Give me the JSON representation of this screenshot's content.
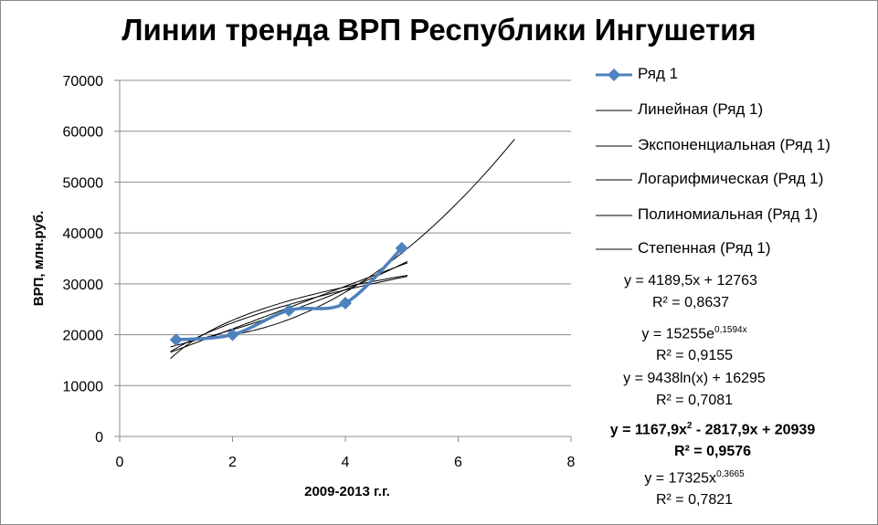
{
  "chart_data": {
    "type": "scatter",
    "title": "Линии тренда ВРП Республики Ингушетия",
    "xlabel": "2009-2013 г.г.",
    "ylabel": "ВРП, млн.руб.",
    "xlim": [
      0,
      8
    ],
    "ylim": [
      0,
      70000
    ],
    "x_ticks": [
      "0",
      "2",
      "4",
      "6",
      "8"
    ],
    "y_ticks": [
      "0",
      "10000",
      "20000",
      "30000",
      "40000",
      "50000",
      "60000",
      "70000"
    ],
    "grid": "horizontal",
    "legend_position": "right",
    "series": [
      {
        "name": "Ряд 1",
        "x": [
          1,
          2,
          3,
          4,
          5
        ],
        "y": [
          19000,
          20000,
          24800,
          26200,
          37000
        ],
        "color": "#4f81bd",
        "marker": "diamond"
      }
    ],
    "trendlines": [
      {
        "name": "Линейная (Ряд 1)",
        "kind": "linear",
        "a": 4189.5,
        "b": 12763,
        "r2": "0,8637"
      },
      {
        "name": "Экспоненциальная (Ряд 1)",
        "kind": "exponential",
        "a": 15255,
        "b": 0.1594,
        "r2": "0,9155"
      },
      {
        "name": "Логарифмическая (Ряд 1)",
        "kind": "logarithmic",
        "a": 9438,
        "b": 16295,
        "r2": "0,7081"
      },
      {
        "name": "Полиномиальная (Ряд 1)",
        "kind": "polynomial",
        "a": 1167.9,
        "b": -2817.9,
        "c": 20939,
        "r2": "0,9576"
      },
      {
        "name": "Степенная (Ряд 1)",
        "kind": "power",
        "a": 17325,
        "b": 0.3665,
        "r2": "0,7821"
      }
    ],
    "trend_color": "#000000"
  },
  "legend": {
    "series_label": "Ряд 1",
    "items": [
      "Линейная (Ряд 1)",
      "Экспоненциальная (Ряд 1)",
      "Логарифмическая (Ряд 1)",
      "Полиномиальная (Ряд 1)",
      "Степенная (Ряд 1)"
    ]
  },
  "equations": {
    "linear": {
      "text": "y = 4189,5x + 12763",
      "r2": "R² = 0,8637"
    },
    "exponential": {
      "prefix": "y = 15255e",
      "exp": "0,1594x",
      "r2": "R² = 0,9155"
    },
    "logarithmic": {
      "text": "y = 9438ln(x) + 16295",
      "r2": "R² = 0,7081"
    },
    "polynomial": {
      "part1": "y = 1167,9x",
      "sup": "2",
      "part2": " - 2817,9x + 20939",
      "r2": "R² = 0,9576"
    },
    "power": {
      "prefix": "y = 17325x",
      "exp": "0,3665",
      "r2": "R² = 0,7821"
    }
  }
}
